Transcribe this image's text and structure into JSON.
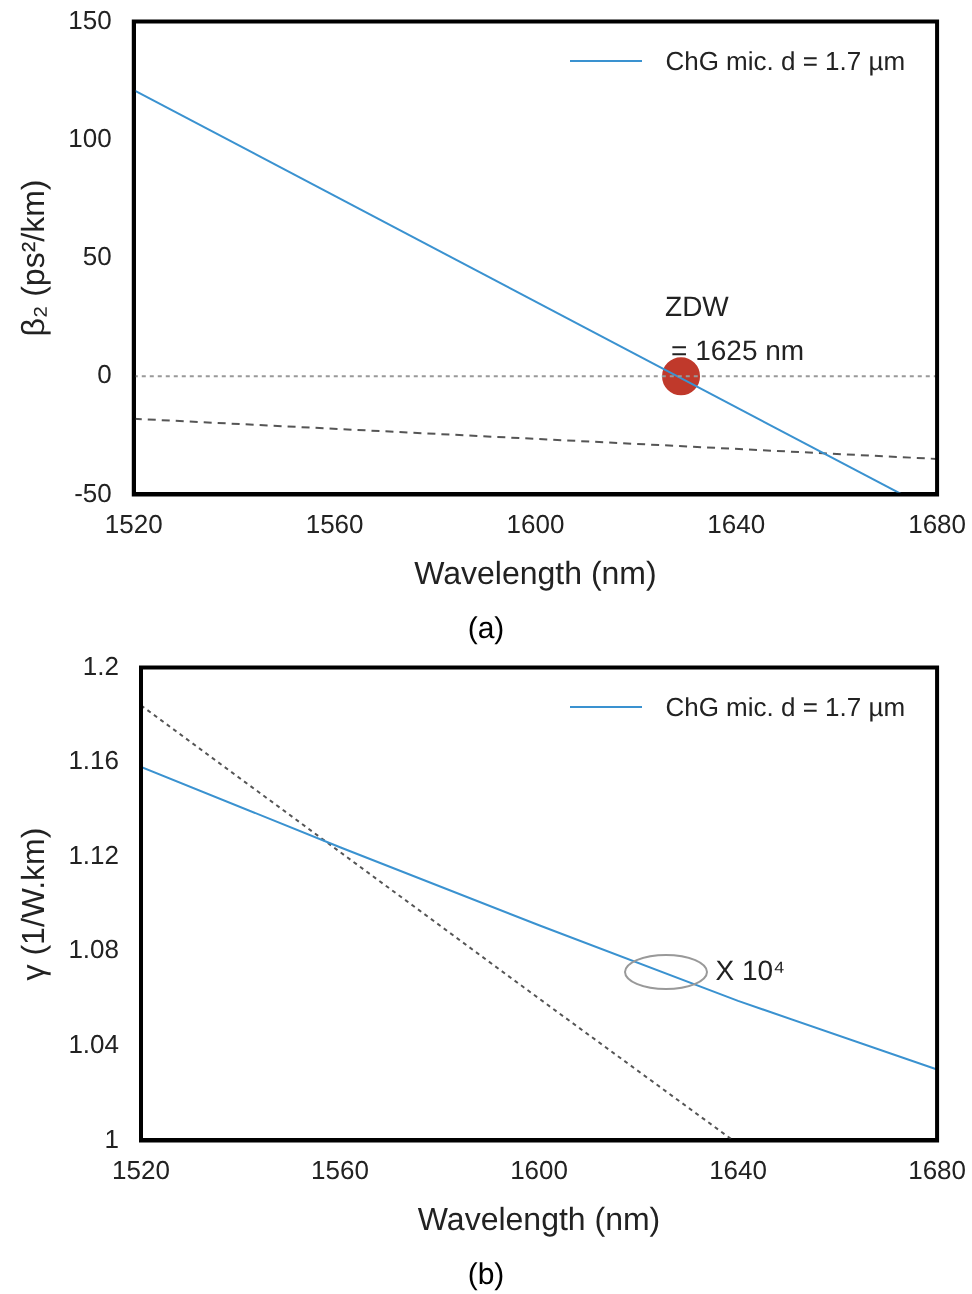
{
  "chart_data": [
    {
      "type": "line",
      "xlabel": "Wavelength (nm)",
      "ylabel": "β₂ (ps²/km)",
      "xlim": [
        1520,
        1680
      ],
      "xticks": [
        1520,
        1560,
        1600,
        1640,
        1680
      ],
      "ylim": [
        -50,
        150
      ],
      "yticks": [
        -50,
        0,
        50,
        100,
        150
      ],
      "grid": false,
      "legend": "top right",
      "marker": "none",
      "series": [
        {
          "name": "ChG mic.  d = 1.7 µm",
          "color": "#3a92d0",
          "line_style": "solid",
          "x": [
            1520,
            1673
          ],
          "values": [
            121,
            -50
          ]
        },
        {
          "color": "#555555",
          "line_style": "dashed",
          "x": [
            1520,
            1680
          ],
          "values": [
            -18,
            -35
          ]
        },
        {
          "type": "scatter",
          "marker": "circle",
          "color": "#c0392b",
          "x": [
            1629
          ],
          "values": [
            0
          ]
        }
      ],
      "ref_lines": [
        {
          "axis": "y",
          "value": 0,
          "color": "#999999",
          "line_style": "dotted"
        }
      ],
      "annotations": [
        {
          "text": "ZDW = 1625 nm",
          "x": 1629,
          "y": 0
        },
        "(a)"
      ]
    },
    {
      "type": "line",
      "xlabel": "Wavelength (nm)",
      "ylabel": "γ (1/W.km)",
      "xlim": [
        1520,
        1680
      ],
      "xticks": [
        1520,
        1560,
        1600,
        1640,
        1680
      ],
      "ylim": [
        1,
        1.2
      ],
      "yticks": [
        1,
        1.04,
        1.08,
        1.12,
        1.16,
        1.2
      ],
      "grid": false,
      "legend": "top right",
      "marker": "none",
      "series": [
        {
          "name": "ChG mic.  d = 1.7 µm",
          "color": "#3a92d0",
          "line_style": "solid",
          "x": [
            1520,
            1560,
            1600,
            1640,
            1680
          ],
          "values": [
            1.158,
            1.124,
            1.091,
            1.059,
            1.03
          ]
        },
        {
          "color": "#555555",
          "line_style": "dotted",
          "x": [
            1520,
            1560,
            1600,
            1639
          ],
          "values": [
            1.184,
            1.122,
            1.06,
            1.0
          ]
        }
      ],
      "annotations": [
        {
          "text": "X 10⁴",
          "x": 1625,
          "y": 1.072
        },
        "(b)"
      ]
    }
  ]
}
